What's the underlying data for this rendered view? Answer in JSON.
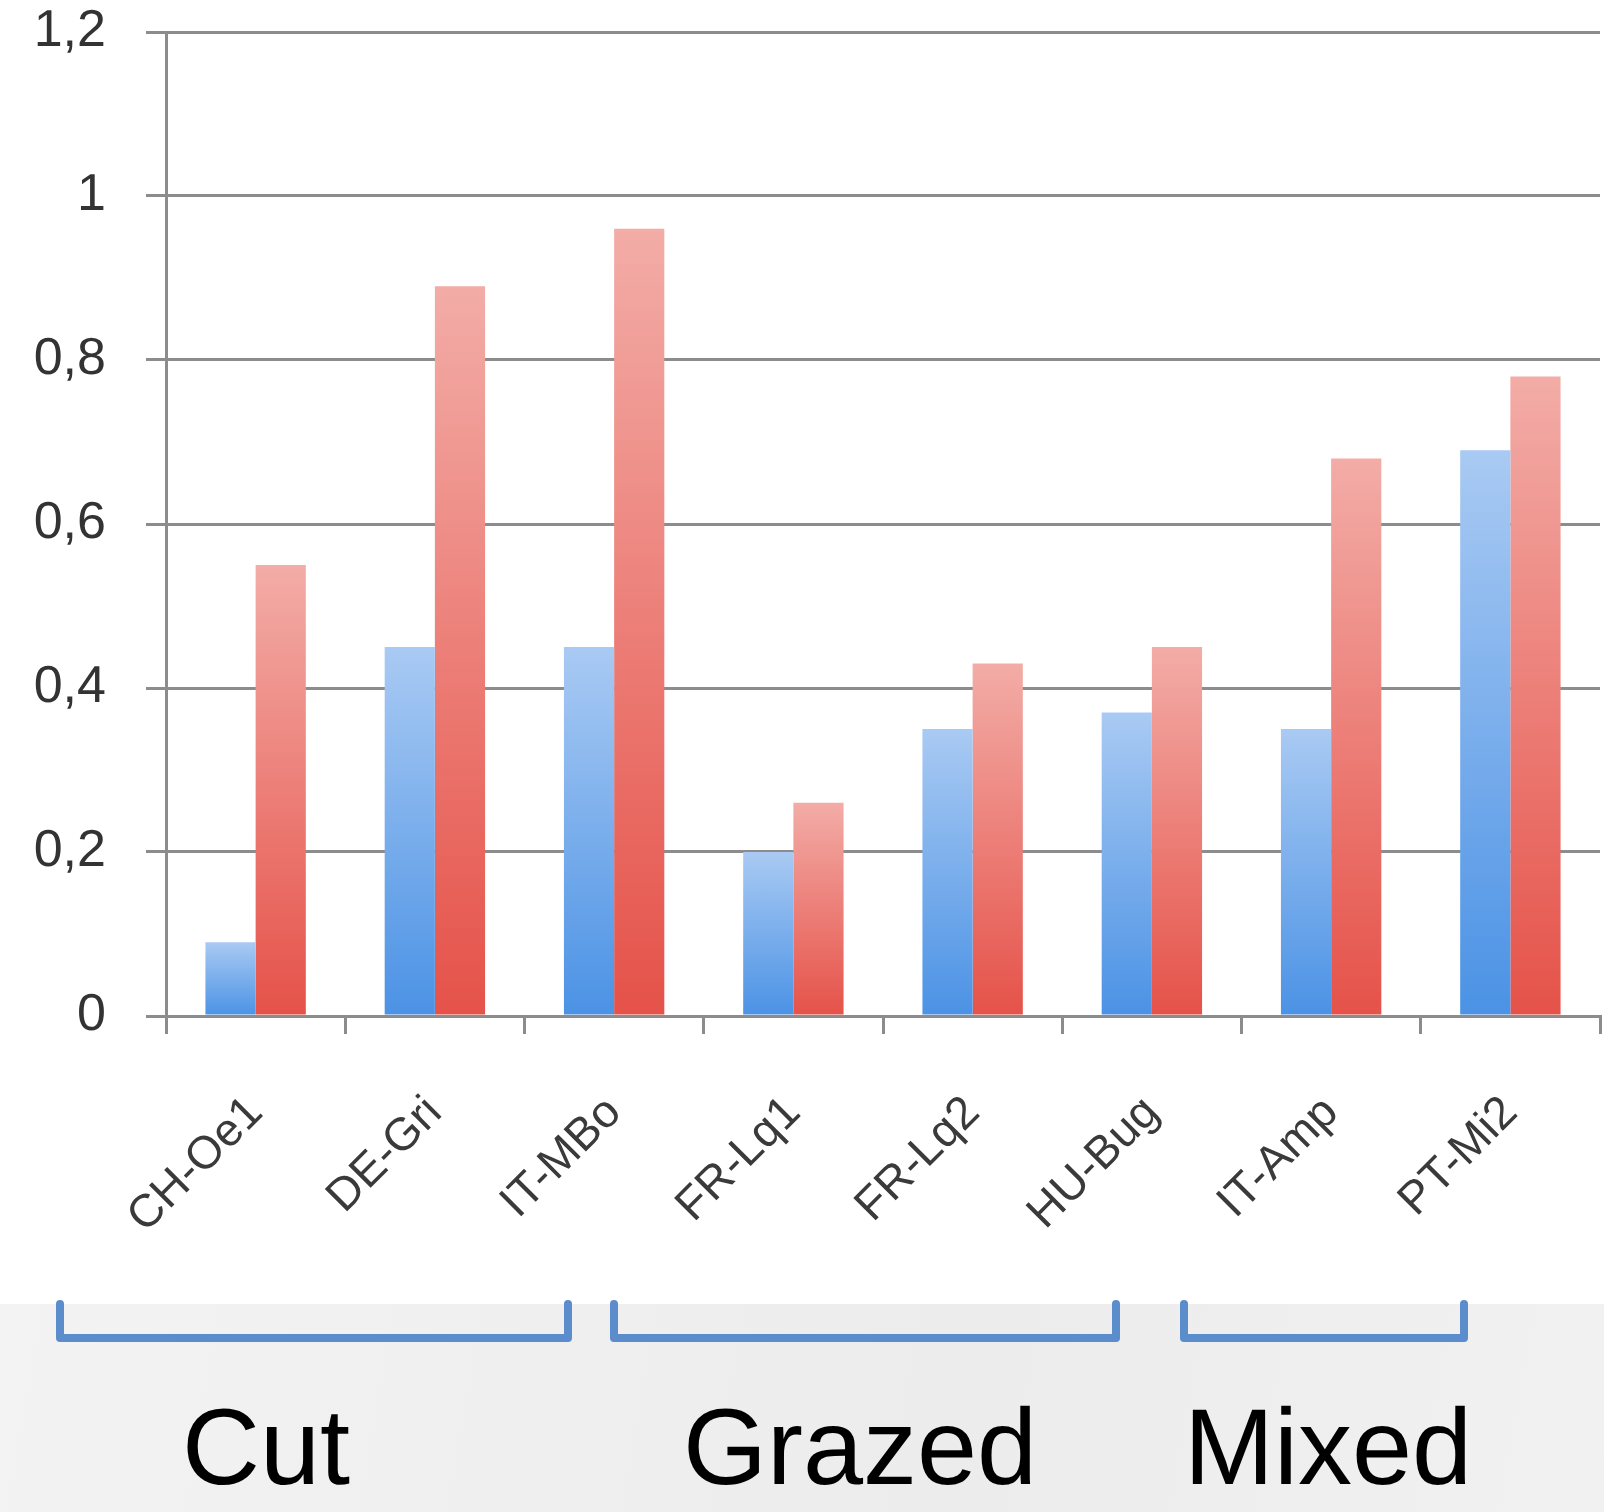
{
  "chart_data": {
    "type": "bar",
    "categories": [
      "CH-Oe1",
      "DE-Gri",
      "IT-MBo",
      "FR-Lq1",
      "FR-Lq2",
      "HU-Bug",
      "IT-Amp",
      "PT-Mi2"
    ],
    "series": [
      {
        "color": "#7aaeec",
        "values": [
          0.09,
          0.45,
          0.45,
          0.2,
          0.35,
          0.37,
          0.35,
          0.69
        ]
      },
      {
        "color": "#ec7f78",
        "values": [
          0.55,
          0.89,
          0.96,
          0.26,
          0.43,
          0.45,
          0.68,
          0.78
        ]
      }
    ],
    "ylim": [
      0,
      1.2
    ],
    "yticks": [
      0,
      {
        "value": 0.2,
        "label": "0,2"
      },
      {
        "value": 0.4,
        "label": "0,4"
      },
      {
        "value": 0.6,
        "label": "0,6"
      },
      {
        "value": 0.8,
        "label": "0,8"
      },
      1,
      {
        "value": 1.2,
        "label": "1,2"
      }
    ],
    "grid": "y",
    "annotations": [
      "Cut",
      "Grazed",
      "Mixed"
    ]
  }
}
